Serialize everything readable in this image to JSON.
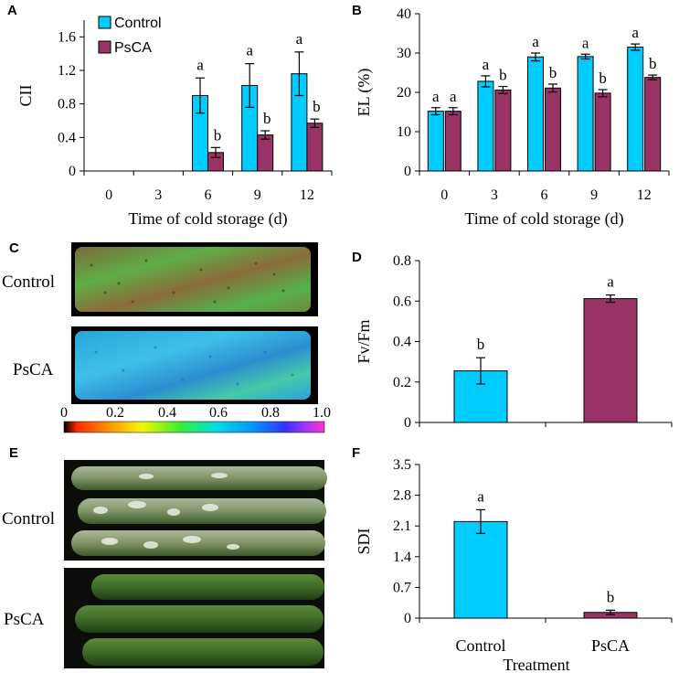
{
  "colors": {
    "control": "#00CCFF",
    "psca": "#993366"
  },
  "photos": {
    "panel_c": {
      "letter": "C",
      "labels": [
        "Control",
        "PsCA"
      ]
    },
    "panel_e": {
      "letter": "E",
      "labels": [
        "Control",
        "PsCA"
      ]
    },
    "colorbar": {
      "ticks": [
        "0",
        "0.2",
        "0.4",
        "0.6",
        "0.8",
        "1.0"
      ]
    }
  },
  "chart_data": [
    {
      "id": "A",
      "letter": "A",
      "type": "bar",
      "title": "",
      "xlabel": "Time of cold storage (d)",
      "ylabel": "CII",
      "categories": [
        "0",
        "3",
        "6",
        "9",
        "12"
      ],
      "ylim": [
        0,
        1.8
      ],
      "yticks": [
        "0",
        "0.4",
        "0.8",
        "1.2",
        "1.6"
      ],
      "legend": [
        "Control",
        "PsCA"
      ],
      "series": [
        {
          "name": "Control",
          "values": [
            0,
            0,
            0.9,
            1.02,
            1.16
          ],
          "errors": [
            0,
            0,
            0.21,
            0.26,
            0.26
          ],
          "labels": [
            "",
            "",
            "a",
            "a",
            "a"
          ]
        },
        {
          "name": "PsCA",
          "values": [
            0,
            0,
            0.22,
            0.43,
            0.57
          ],
          "errors": [
            0,
            0,
            0.06,
            0.05,
            0.05
          ],
          "labels": [
            "",
            "",
            "b",
            "b",
            "b"
          ]
        }
      ]
    },
    {
      "id": "B",
      "letter": "B",
      "type": "bar",
      "title": "",
      "xlabel": "Time of cold storage (d)",
      "ylabel": "EL (%)",
      "categories": [
        "0",
        "3",
        "6",
        "9",
        "12"
      ],
      "ylim": [
        0,
        40
      ],
      "yticks": [
        "0",
        "10",
        "20",
        "30",
        "40"
      ],
      "series": [
        {
          "name": "Control",
          "values": [
            15.2,
            22.8,
            29.0,
            29.1,
            31.5
          ],
          "errors": [
            0.9,
            1.4,
            1.0,
            0.6,
            0.8
          ],
          "labels": [
            "a",
            "a",
            "a",
            "a",
            "a"
          ]
        },
        {
          "name": "PsCA",
          "values": [
            15.2,
            20.6,
            21.1,
            19.8,
            23.8
          ],
          "errors": [
            0.9,
            0.9,
            1.0,
            0.9,
            0.6
          ],
          "labels": [
            "a",
            "b",
            "b",
            "b",
            "b"
          ]
        }
      ]
    },
    {
      "id": "D",
      "letter": "D",
      "type": "bar",
      "title": "",
      "xlabel": "",
      "ylabel": "Fv/Fm",
      "categories": [
        "Control",
        "PsCA"
      ],
      "ylim": [
        0,
        0.8
      ],
      "yticks": [
        "0",
        "0.2",
        "0.4",
        "0.6",
        "0.8"
      ],
      "bars": [
        {
          "name": "Control",
          "value": 0.255,
          "error": 0.065,
          "label": "b"
        },
        {
          "name": "PsCA",
          "value": 0.612,
          "error": 0.018,
          "label": "a"
        }
      ]
    },
    {
      "id": "F",
      "letter": "F",
      "type": "bar",
      "title": "",
      "xlabel": "Treatment",
      "ylabel": "SDI",
      "categories": [
        "Control",
        "PsCA"
      ],
      "ylim": [
        0,
        3.5
      ],
      "yticks": [
        "0",
        "0.7",
        "1.4",
        "2.1",
        "2.8",
        "3.5"
      ],
      "bars": [
        {
          "name": "Control",
          "value": 2.2,
          "error": 0.27,
          "label": "a"
        },
        {
          "name": "PsCA",
          "value": 0.13,
          "error": 0.05,
          "label": "b"
        }
      ]
    }
  ]
}
